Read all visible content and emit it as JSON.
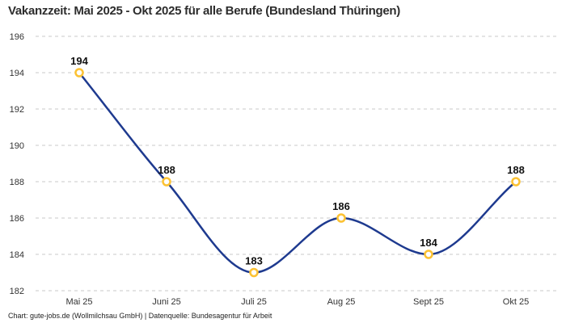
{
  "title": "Vakanzzeit: Mai 2025 - Okt 2025 für alle Berufe (Bundesland Thüringen)",
  "footer": "Chart: gute-jobs.de (Wollmilchsau GmbH) | Datenquelle: Bundesagentur für Arbeit",
  "chart_data": {
    "type": "line",
    "title": "Vakanzzeit: Mai 2025 - Okt 2025 für alle Berufe (Bundesland Thüringen)",
    "categories": [
      "Mai 25",
      "Juni 25",
      "Juli 25",
      "Aug 25",
      "Sept 25",
      "Okt 25"
    ],
    "values": [
      194,
      188,
      183,
      186,
      184,
      188
    ],
    "value_labels": [
      "194",
      "188",
      "183",
      "186",
      "184",
      "188"
    ],
    "xlabel": "",
    "ylabel": "",
    "ylim": [
      182,
      196
    ],
    "y_ticks": [
      196,
      194,
      192,
      190,
      188,
      186,
      184,
      182
    ],
    "grid": "horizontal-dashed",
    "legend": "none",
    "curve": "smooth-monotone",
    "colors": {
      "line": "#1e3a8f",
      "marker_ring": "#fcc233",
      "marker_fill": "#ffffff",
      "gridline": "#c9c9c9",
      "tick_label": "#333333",
      "value_label": "#111111"
    }
  }
}
